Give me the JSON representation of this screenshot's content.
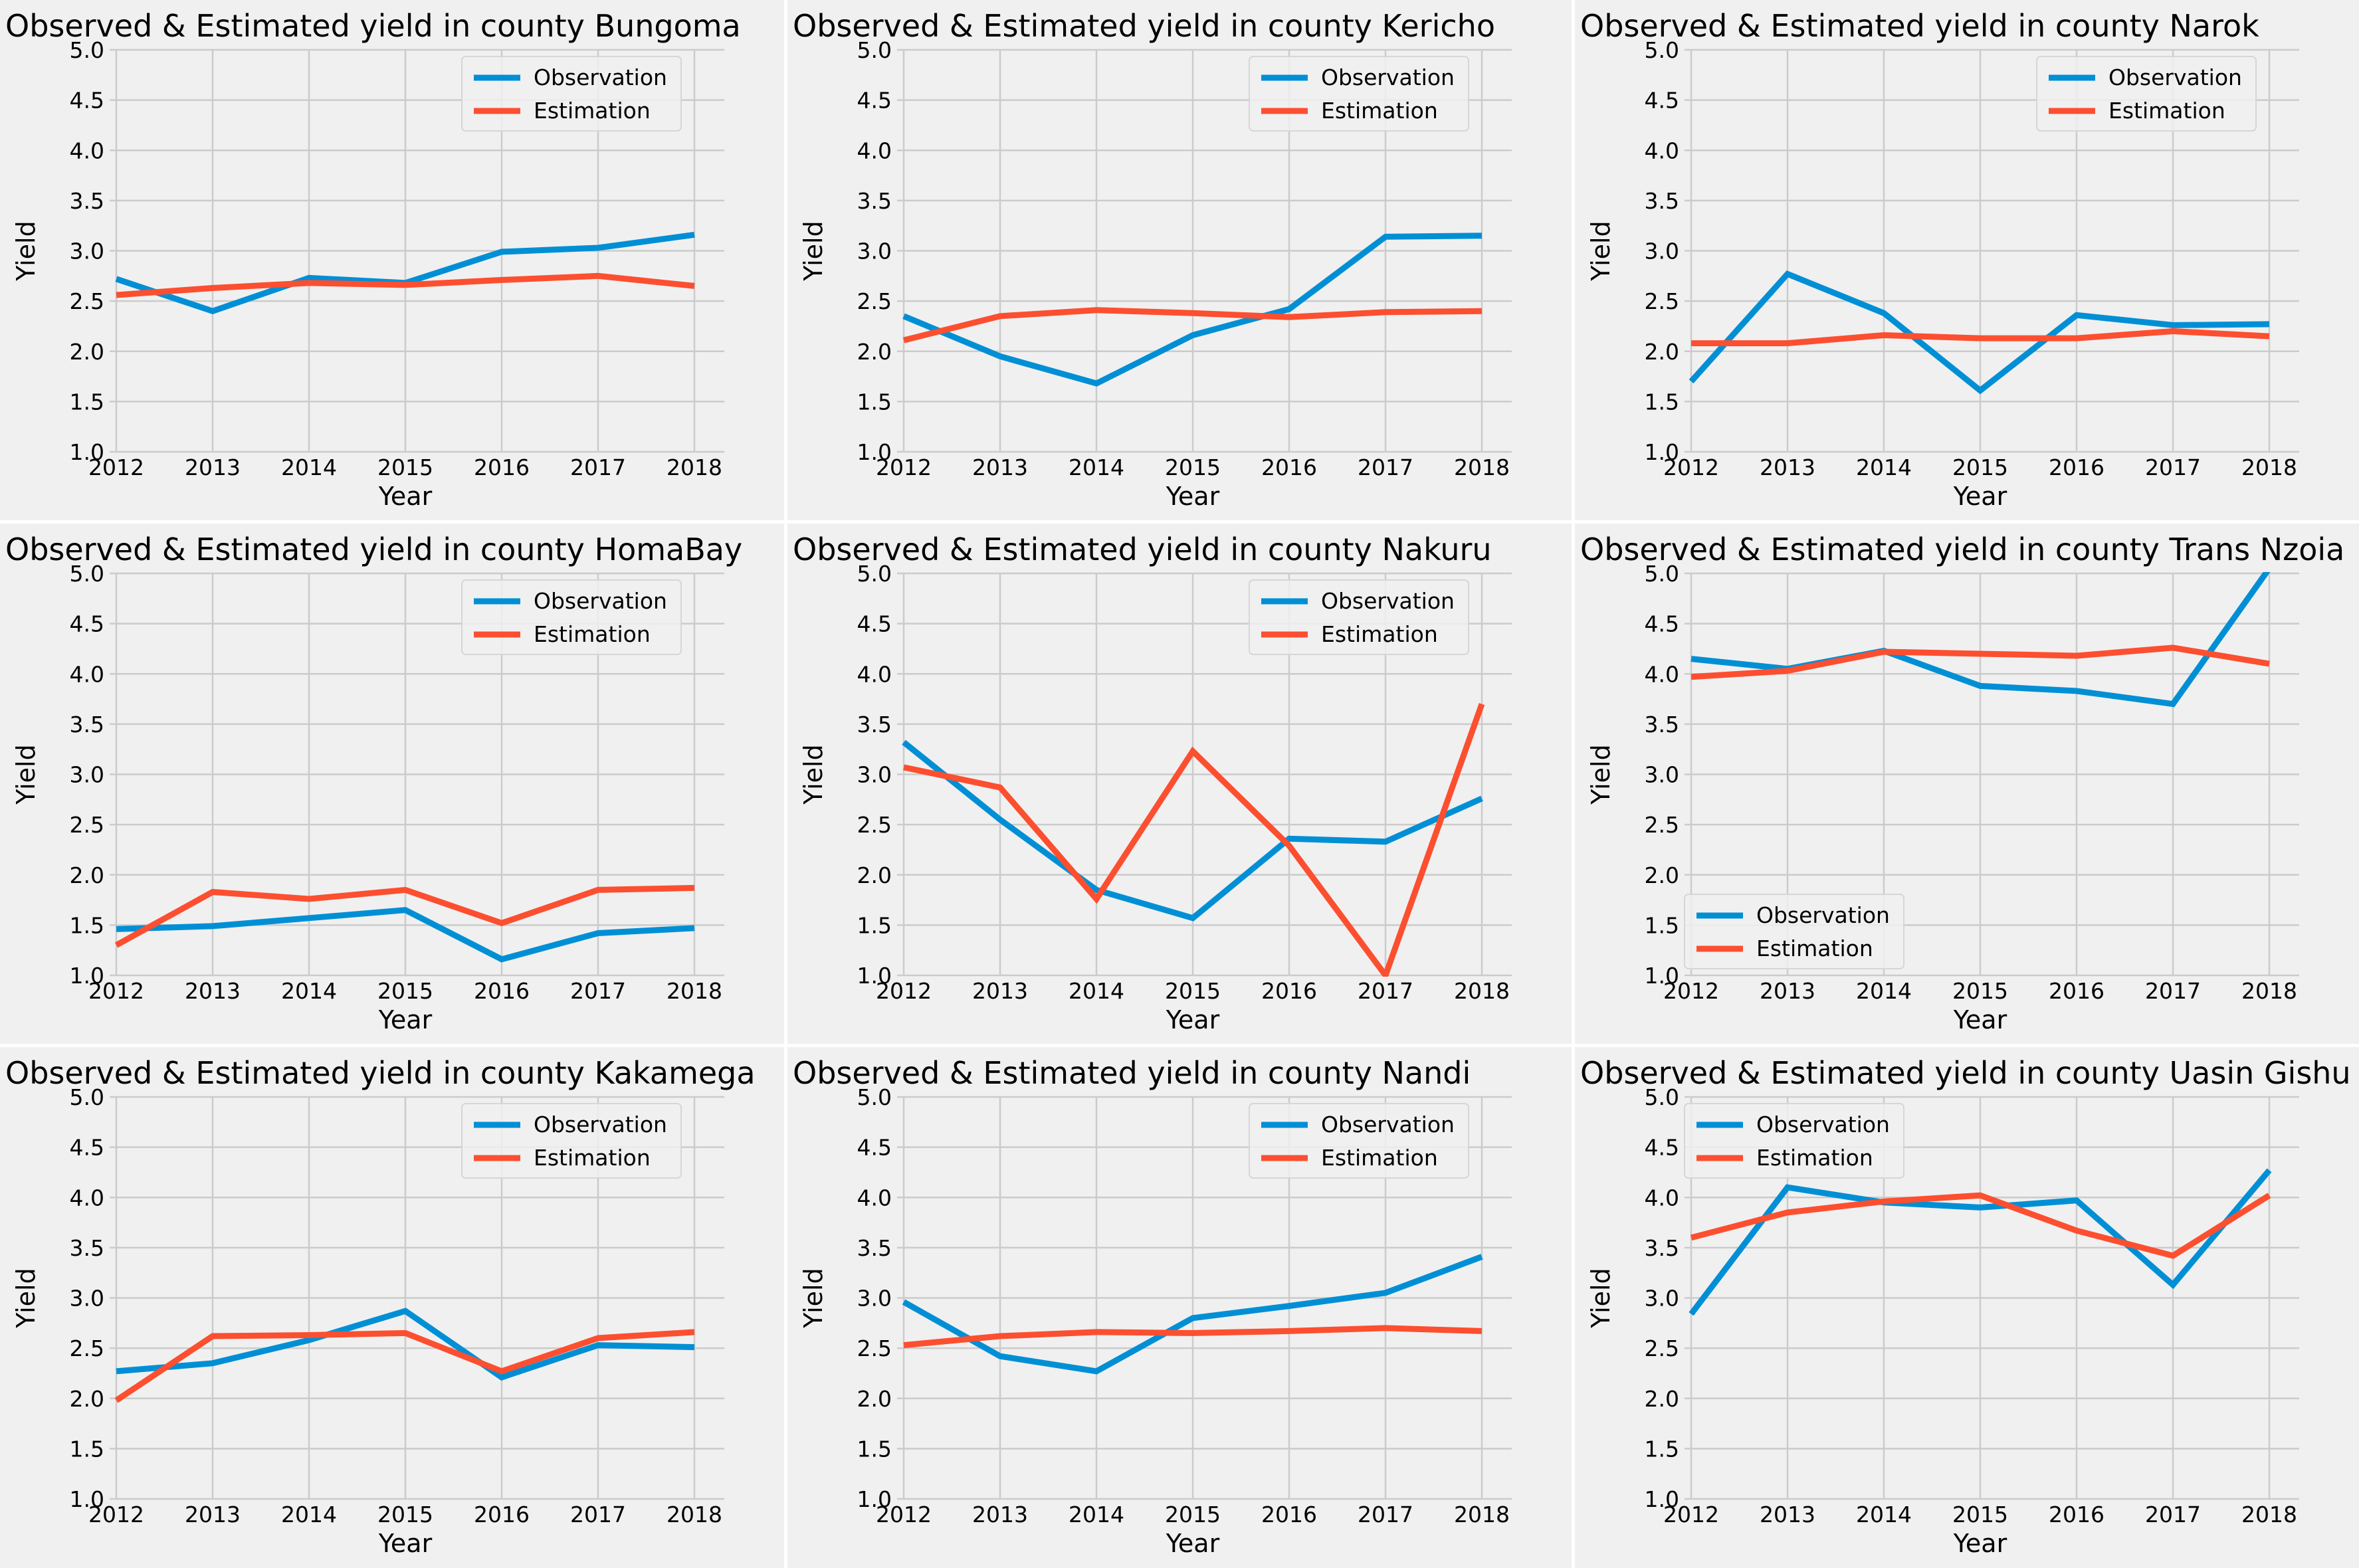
{
  "figure": {
    "background": "#ffffff",
    "panel_background": "#f0f0f0",
    "grid_color": "#cbcbcb"
  },
  "chart_data": [
    {
      "type": "line",
      "title": "Observed & Estimated yield in county Bungoma",
      "xlabel": "Year",
      "ylabel": "Yield",
      "x": [
        2012,
        2013,
        2014,
        2015,
        2016,
        2017,
        2018
      ],
      "ylim": [
        1.0,
        5.0
      ],
      "yticks": [
        "1.0",
        "1.5",
        "2.0",
        "2.5",
        "3.0",
        "3.5",
        "4.0",
        "4.5",
        "5.0"
      ],
      "grid": true,
      "legend": "top-right",
      "series": [
        {
          "name": "Observation",
          "color": "#008fd5",
          "values": [
            2.72,
            2.4,
            2.73,
            2.68,
            2.99,
            3.03,
            3.16
          ]
        },
        {
          "name": "Estimation",
          "color": "#fc4f30",
          "values": [
            2.56,
            2.63,
            2.68,
            2.66,
            2.71,
            2.75,
            2.65
          ]
        }
      ]
    },
    {
      "type": "line",
      "title": "Observed & Estimated yield in county Kericho",
      "xlabel": "Year",
      "ylabel": "Yield",
      "x": [
        2012,
        2013,
        2014,
        2015,
        2016,
        2017,
        2018
      ],
      "ylim": [
        1.0,
        5.0
      ],
      "yticks": [
        "1.0",
        "1.5",
        "2.0",
        "2.5",
        "3.0",
        "3.5",
        "4.0",
        "4.5",
        "5.0"
      ],
      "grid": true,
      "legend": "top-right",
      "series": [
        {
          "name": "Observation",
          "color": "#008fd5",
          "values": [
            2.35,
            1.95,
            1.68,
            2.16,
            2.42,
            3.14,
            3.15
          ]
        },
        {
          "name": "Estimation",
          "color": "#fc4f30",
          "values": [
            2.11,
            2.35,
            2.41,
            2.38,
            2.34,
            2.39,
            2.4
          ]
        }
      ]
    },
    {
      "type": "line",
      "title": "Observed & Estimated yield in county Narok",
      "xlabel": "Year",
      "ylabel": "Yield",
      "x": [
        2012,
        2013,
        2014,
        2015,
        2016,
        2017,
        2018
      ],
      "ylim": [
        1.0,
        5.0
      ],
      "yticks": [
        "1.0",
        "1.5",
        "2.0",
        "2.5",
        "3.0",
        "3.5",
        "4.0",
        "4.5",
        "5.0"
      ],
      "grid": true,
      "legend": "top-right",
      "series": [
        {
          "name": "Observation",
          "color": "#008fd5",
          "values": [
            1.7,
            2.77,
            2.38,
            1.61,
            2.36,
            2.26,
            2.27
          ]
        },
        {
          "name": "Estimation",
          "color": "#fc4f30",
          "values": [
            2.08,
            2.08,
            2.16,
            2.13,
            2.13,
            2.2,
            2.15
          ]
        }
      ]
    },
    {
      "type": "line",
      "title": "Observed & Estimated yield in county HomaBay",
      "xlabel": "Year",
      "ylabel": "Yield",
      "x": [
        2012,
        2013,
        2014,
        2015,
        2016,
        2017,
        2018
      ],
      "ylim": [
        1.0,
        5.0
      ],
      "yticks": [
        "1.0",
        "1.5",
        "2.0",
        "2.5",
        "3.0",
        "3.5",
        "4.0",
        "4.5",
        "5.0"
      ],
      "grid": true,
      "legend": "top-right",
      "series": [
        {
          "name": "Observation",
          "color": "#008fd5",
          "values": [
            1.46,
            1.49,
            1.57,
            1.65,
            1.16,
            1.42,
            1.47
          ]
        },
        {
          "name": "Estimation",
          "color": "#fc4f30",
          "values": [
            1.3,
            1.83,
            1.76,
            1.85,
            1.52,
            1.85,
            1.87
          ]
        }
      ]
    },
    {
      "type": "line",
      "title": "Observed & Estimated yield in county Nakuru",
      "xlabel": "Year",
      "ylabel": "Yield",
      "x": [
        2012,
        2013,
        2014,
        2015,
        2016,
        2017,
        2018
      ],
      "ylim": [
        1.0,
        5.0
      ],
      "yticks": [
        "1.0",
        "1.5",
        "2.0",
        "2.5",
        "3.0",
        "3.5",
        "4.0",
        "4.5",
        "5.0"
      ],
      "grid": true,
      "legend": "top-right",
      "series": [
        {
          "name": "Observation",
          "color": "#008fd5",
          "values": [
            3.32,
            2.55,
            1.85,
            1.57,
            2.36,
            2.33,
            2.76
          ]
        },
        {
          "name": "Estimation",
          "color": "#fc4f30",
          "values": [
            3.07,
            2.87,
            1.76,
            3.23,
            2.29,
            1.0,
            3.7
          ]
        }
      ]
    },
    {
      "type": "line",
      "title": "Observed & Estimated yield in county Trans Nzoia",
      "xlabel": "Year",
      "ylabel": "Yield",
      "x": [
        2012,
        2013,
        2014,
        2015,
        2016,
        2017,
        2018
      ],
      "ylim": [
        1.0,
        5.0
      ],
      "yticks": [
        "1.0",
        "1.5",
        "2.0",
        "2.5",
        "3.0",
        "3.5",
        "4.0",
        "4.5",
        "5.0"
      ],
      "grid": true,
      "legend": "bottom-left",
      "series": [
        {
          "name": "Observation",
          "color": "#008fd5",
          "values": [
            4.15,
            4.05,
            4.23,
            3.88,
            3.83,
            3.7,
            5.05
          ]
        },
        {
          "name": "Estimation",
          "color": "#fc4f30",
          "values": [
            3.97,
            4.03,
            4.22,
            4.2,
            4.18,
            4.26,
            4.1
          ]
        }
      ]
    },
    {
      "type": "line",
      "title": "Observed & Estimated yield in county Kakamega",
      "xlabel": "Year",
      "ylabel": "Yield",
      "x": [
        2012,
        2013,
        2014,
        2015,
        2016,
        2017,
        2018
      ],
      "ylim": [
        1.0,
        5.0
      ],
      "yticks": [
        "1.0",
        "1.5",
        "2.0",
        "2.5",
        "3.0",
        "3.5",
        "4.0",
        "4.5",
        "5.0"
      ],
      "grid": true,
      "legend": "top-right",
      "series": [
        {
          "name": "Observation",
          "color": "#008fd5",
          "values": [
            2.27,
            2.35,
            2.58,
            2.87,
            2.21,
            2.53,
            2.51
          ]
        },
        {
          "name": "Estimation",
          "color": "#fc4f30",
          "values": [
            1.98,
            2.62,
            2.63,
            2.65,
            2.27,
            2.6,
            2.66
          ]
        }
      ]
    },
    {
      "type": "line",
      "title": "Observed & Estimated yield in county Nandi",
      "xlabel": "Year",
      "ylabel": "Yield",
      "x": [
        2012,
        2013,
        2014,
        2015,
        2016,
        2017,
        2018
      ],
      "ylim": [
        1.0,
        5.0
      ],
      "yticks": [
        "1.0",
        "1.5",
        "2.0",
        "2.5",
        "3.0",
        "3.5",
        "4.0",
        "4.5",
        "5.0"
      ],
      "grid": true,
      "legend": "top-right",
      "series": [
        {
          "name": "Observation",
          "color": "#008fd5",
          "values": [
            2.96,
            2.42,
            2.27,
            2.8,
            2.92,
            3.05,
            3.41
          ]
        },
        {
          "name": "Estimation",
          "color": "#fc4f30",
          "values": [
            2.53,
            2.62,
            2.66,
            2.65,
            2.67,
            2.7,
            2.67
          ]
        }
      ]
    },
    {
      "type": "line",
      "title": "Observed & Estimated yield in county Uasin Gishu",
      "xlabel": "Year",
      "ylabel": "Yield",
      "x": [
        2012,
        2013,
        2014,
        2015,
        2016,
        2017,
        2018
      ],
      "ylim": [
        1.0,
        5.0
      ],
      "yticks": [
        "1.0",
        "1.5",
        "2.0",
        "2.5",
        "3.0",
        "3.5",
        "4.0",
        "4.5",
        "5.0"
      ],
      "grid": true,
      "legend": "top-left",
      "series": [
        {
          "name": "Observation",
          "color": "#008fd5",
          "values": [
            2.84,
            4.1,
            3.95,
            3.9,
            3.97,
            3.13,
            4.27
          ]
        },
        {
          "name": "Estimation",
          "color": "#fc4f30",
          "values": [
            3.6,
            3.85,
            3.96,
            4.02,
            3.67,
            3.42,
            4.02
          ]
        }
      ]
    }
  ]
}
